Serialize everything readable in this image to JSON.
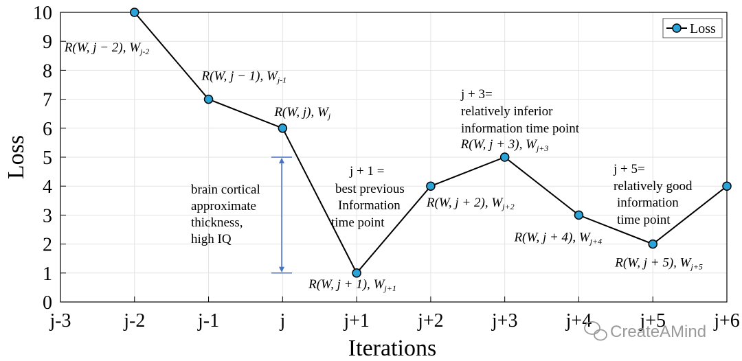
{
  "chart_data": {
    "type": "line",
    "categories": [
      "j-3",
      "j-2",
      "j-1",
      "j",
      "j+1",
      "j+2",
      "j+3",
      "j+4",
      "j+5",
      "j+6"
    ],
    "series": [
      {
        "name": "Loss",
        "values": [
          null,
          10,
          7,
          6,
          1,
          4,
          5,
          3,
          2,
          4
        ],
        "color": "#29a3d8"
      }
    ],
    "xlabel": "Iterations",
    "ylabel": "Loss",
    "ylim": [
      0,
      10
    ],
    "yticks": [
      0,
      1,
      2,
      3,
      4,
      5,
      6,
      7,
      8,
      9,
      10
    ],
    "grid": true,
    "legend_position": "top-right",
    "point_labels": [
      {
        "category": "j-2",
        "base": "R(W, j − 2),",
        "w": "W",
        "sub": "j-2"
      },
      {
        "category": "j-1",
        "base": "R(W, j − 1),",
        "w": "W",
        "sub": "j-1"
      },
      {
        "category": "j",
        "base": "R(W, j),",
        "w": "W",
        "sub": "j"
      },
      {
        "category": "j+1",
        "base": "R(W, j + 1),",
        "w": "W",
        "sub": "j+1"
      },
      {
        "category": "j+2",
        "base": "R(W, j + 2),",
        "w": "W",
        "sub": "j+2"
      },
      {
        "category": "j+3",
        "base": "R(W, j + 3),",
        "w": "W",
        "sub": "j+3"
      },
      {
        "category": "j+4",
        "base": "R(W, j + 4),",
        "w": "W",
        "sub": "j+4"
      },
      {
        "category": "j+5",
        "base": "R(W, j + 5),",
        "w": "W",
        "sub": "j+5"
      }
    ],
    "bracket": {
      "from": 1,
      "to": 5,
      "color": "#4472c4"
    },
    "notes": {
      "bracket_lines": [
        "brain cortical",
        "approximate",
        "thickness,",
        "high IQ"
      ],
      "j1_lines": [
        "j + 1 =",
        "best previous",
        "Information",
        "time point"
      ],
      "j3_lines": [
        "j + 3=",
        "relatively inferior",
        "information time point"
      ],
      "j5_lines": [
        "j + 5=",
        "relatively good",
        "information",
        "time point"
      ]
    }
  },
  "watermark": "CreateAMind",
  "watermark_icon": "wechat-icon"
}
